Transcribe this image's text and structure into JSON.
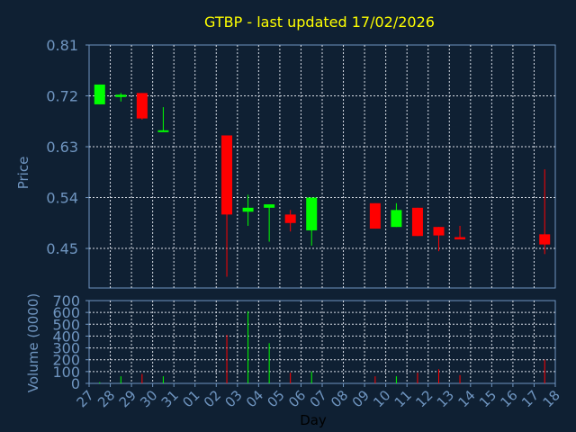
{
  "colors": {
    "background": "#0f2033",
    "axis": "#6f95c0",
    "grid": "#d8dde6",
    "title": "#ffff00",
    "up": "#00ff00",
    "down": "#ff0000"
  },
  "chart_data": {
    "type": "candlestick",
    "title": "GTBP - last updated 17/02/2026",
    "xlabel": "Day",
    "price_ylabel": "Price",
    "volume_ylabel": "Volume (0000)",
    "x_ticks": [
      "27",
      "28",
      "29",
      "30",
      "31",
      "01",
      "02",
      "03",
      "04",
      "05",
      "06",
      "07",
      "08",
      "09",
      "10",
      "11",
      "12",
      "13",
      "14",
      "15",
      "16",
      "17",
      "18"
    ],
    "price_ticks": [
      "0.81",
      "0.72",
      "0.63",
      "0.54",
      "0.45"
    ],
    "price_ylim": [
      0.38,
      0.81
    ],
    "volume_ticks": [
      "700",
      "600",
      "500",
      "400",
      "300",
      "200",
      "100",
      "0"
    ],
    "volume_ylim": [
      0,
      700
    ],
    "grid": true,
    "candles": [
      {
        "day": "27",
        "open": 0.705,
        "close": 0.74,
        "high": 0.74,
        "low": 0.705,
        "volume": 10
      },
      {
        "day": "28",
        "open": 0.718,
        "close": 0.722,
        "high": 0.725,
        "low": 0.71,
        "volume": 60
      },
      {
        "day": "29",
        "open": 0.725,
        "close": 0.68,
        "high": 0.725,
        "low": 0.678,
        "volume": 80
      },
      {
        "day": "30",
        "open": 0.657,
        "close": 0.659,
        "high": 0.7,
        "low": 0.657,
        "volume": 60
      },
      {
        "day": "02",
        "open": 0.65,
        "close": 0.51,
        "high": 0.65,
        "low": 0.4,
        "volume": 410
      },
      {
        "day": "03",
        "open": 0.515,
        "close": 0.522,
        "high": 0.545,
        "low": 0.49,
        "volume": 610
      },
      {
        "day": "04",
        "open": 0.522,
        "close": 0.528,
        "high": 0.528,
        "low": 0.462,
        "volume": 340
      },
      {
        "day": "05",
        "open": 0.51,
        "close": 0.495,
        "high": 0.518,
        "low": 0.48,
        "volume": 90
      },
      {
        "day": "06",
        "open": 0.482,
        "close": 0.54,
        "high": 0.54,
        "low": 0.455,
        "volume": 100
      },
      {
        "day": "09",
        "open": 0.53,
        "close": 0.485,
        "high": 0.53,
        "low": 0.485,
        "volume": 60
      },
      {
        "day": "10",
        "open": 0.488,
        "close": 0.518,
        "high": 0.53,
        "low": 0.488,
        "volume": 60
      },
      {
        "day": "11",
        "open": 0.522,
        "close": 0.472,
        "high": 0.522,
        "low": 0.472,
        "volume": 90
      },
      {
        "day": "12",
        "open": 0.488,
        "close": 0.473,
        "high": 0.488,
        "low": 0.445,
        "volume": 120
      },
      {
        "day": "13",
        "open": 0.47,
        "close": 0.466,
        "high": 0.49,
        "low": 0.466,
        "volume": 70
      },
      {
        "day": "17",
        "open": 0.475,
        "close": 0.457,
        "high": 0.59,
        "low": 0.44,
        "volume": 200
      }
    ]
  }
}
